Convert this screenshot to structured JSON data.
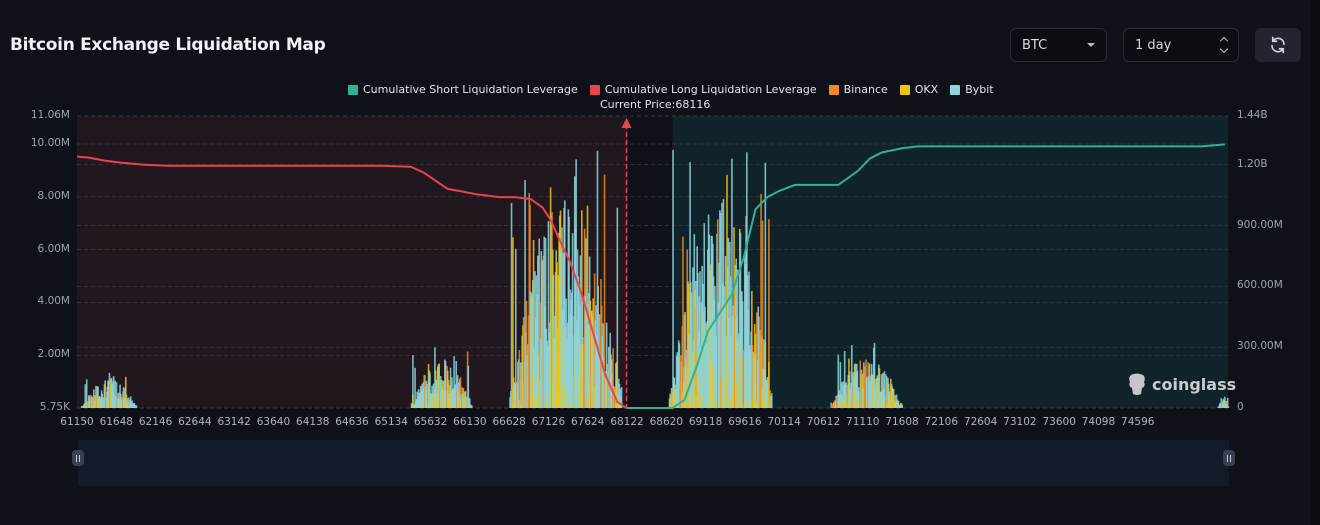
{
  "header": {
    "title": "Bitcoin Exchange Liquidation Map",
    "coin_select": "BTC",
    "period_select": "1 day",
    "refresh_icon": "refresh-icon"
  },
  "colors": {
    "short_cumulative": "#2bb39a",
    "long_cumulative": "#e8434f",
    "binance": "#f08a1c",
    "okx": "#f2c50d",
    "bybit": "#8fd6dc",
    "background": "#0f1119"
  },
  "watermark": "coinglass",
  "chart_data": {
    "type": "bar",
    "title": "Bitcoin Exchange Liquidation Map",
    "legend": [
      {
        "name": "Cumulative Short Liquidation Leverage",
        "color": "#2bb39a"
      },
      {
        "name": "Cumulative Long Liquidation Leverage",
        "color": "#e8434f"
      },
      {
        "name": "Binance",
        "color": "#f08a1c"
      },
      {
        "name": "OKX",
        "color": "#f2c50d"
      },
      {
        "name": "Bybit",
        "color": "#8fd6dc"
      }
    ],
    "legend_position": "top-center",
    "current_price_label": "Current Price:68116",
    "current_price": 68116,
    "x_ticks": [
      "61150",
      "61648",
      "62146",
      "62644",
      "63142",
      "63640",
      "64138",
      "64636",
      "65134",
      "65632",
      "66130",
      "66628",
      "67126",
      "67624",
      "68122",
      "68620",
      "69118",
      "69616",
      "70114",
      "70612",
      "71110",
      "71608",
      "72106",
      "72604",
      "73102",
      "73600",
      "74098",
      "74596"
    ],
    "xlim": [
      61150,
      75740
    ],
    "y_left_ticks": [
      "11.06M",
      "10.00M",
      "8.00M",
      "6.00M",
      "4.00M",
      "2.00M",
      "5.75K"
    ],
    "y_left_range": [
      5750,
      11060000
    ],
    "y_right_ticks": [
      "1.44B",
      "1.20B",
      "900.00M",
      "600.00M",
      "300.00M",
      "0"
    ],
    "y_right_range": [
      0,
      1440000000
    ],
    "grid": true,
    "long_cumulative": {
      "x": [
        61150,
        61300,
        61500,
        61700,
        62000,
        62300,
        62600,
        63000,
        64000,
        65000,
        65380,
        65550,
        65700,
        65850,
        66000,
        66200,
        66500,
        66700,
        66900,
        67050,
        67150,
        67300,
        67400,
        67550,
        67700,
        67850,
        68000,
        68116
      ],
      "y": [
        1240000000,
        1235000000,
        1220000000,
        1210000000,
        1200000000,
        1195000000,
        1195000000,
        1195000000,
        1195000000,
        1195000000,
        1190000000,
        1160000000,
        1120000000,
        1080000000,
        1070000000,
        1055000000,
        1040000000,
        1040000000,
        1030000000,
        990000000,
        930000000,
        800000000,
        720000000,
        560000000,
        360000000,
        160000000,
        30000000,
        0
      ]
    },
    "short_cumulative": {
      "x": [
        68116,
        68700,
        68850,
        69000,
        69150,
        69300,
        69450,
        69600,
        69750,
        69900,
        70050,
        70250,
        70500,
        70800,
        71050,
        71200,
        71350,
        71600,
        71800,
        72000,
        75000,
        75400,
        75700
      ],
      "y": [
        0,
        0,
        40000000,
        200000000,
        380000000,
        470000000,
        560000000,
        740000000,
        980000000,
        1040000000,
        1070000000,
        1100000000,
        1100000000,
        1100000000,
        1170000000,
        1230000000,
        1260000000,
        1280000000,
        1290000000,
        1290000000,
        1290000000,
        1290000000,
        1300000000
      ]
    },
    "bar_clusters": [
      {
        "range": [
          61200,
          61900
        ],
        "peak": 1400000
      },
      {
        "range": [
          65380,
          66150
        ],
        "peak": 2400000
      },
      {
        "range": [
          66630,
          68050
        ],
        "peak": 10000000
      },
      {
        "range": [
          68650,
          69950
        ],
        "peak": 10000000
      },
      {
        "range": [
          70700,
          71600
        ],
        "peak": 2500000
      },
      {
        "range": [
          75600,
          75740
        ],
        "peak": 600000
      }
    ]
  }
}
